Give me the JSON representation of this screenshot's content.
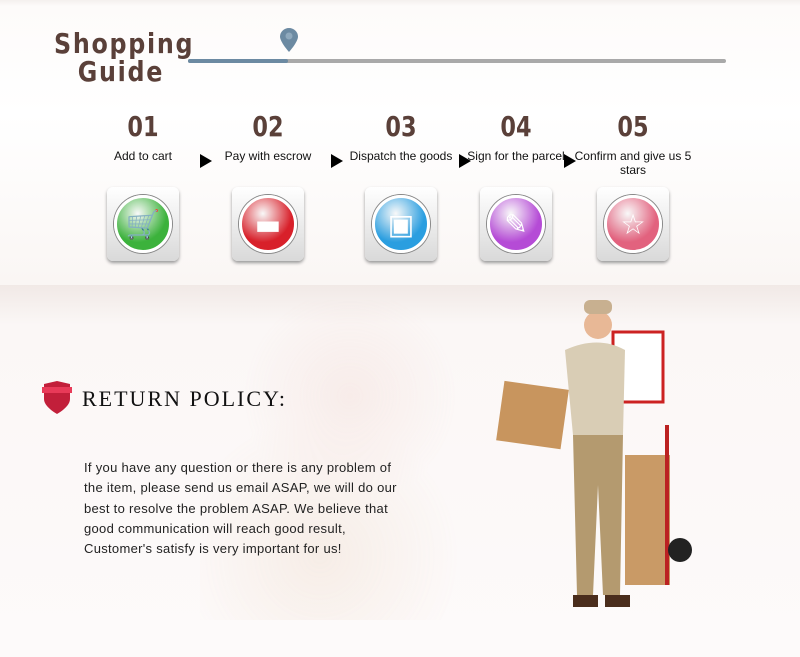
{
  "header": {
    "title_line1": "Shopping",
    "title_line2": "Guide",
    "progress_percent": 18.6
  },
  "steps": [
    {
      "num": "01",
      "label": "Add to cart",
      "icon": "shopping-cart-icon",
      "color": "#3cb23c"
    },
    {
      "num": "02",
      "label": "Pay with escrow",
      "icon": "credit-card-icon",
      "color": "#d8202a"
    },
    {
      "num": "03",
      "label": "Dispatch the goods",
      "icon": "truck-icon",
      "color": "#2a9ee0"
    },
    {
      "num": "04",
      "label": "Sign for the parcel",
      "icon": "sign-pen-icon",
      "color": "#b54bd6"
    },
    {
      "num": "05",
      "label": "Confirm and give us 5 stars",
      "icon": "star-icon",
      "color": "#e2627e"
    }
  ],
  "return_policy": {
    "title": "RETURN POLICY:",
    "text": "If you have any question or there is any problem of the item, please send us email ASAP, we will do our best to resolve the problem ASAP. We believe that good communication will reach good result, Customer's satisfy is very important for us!"
  }
}
